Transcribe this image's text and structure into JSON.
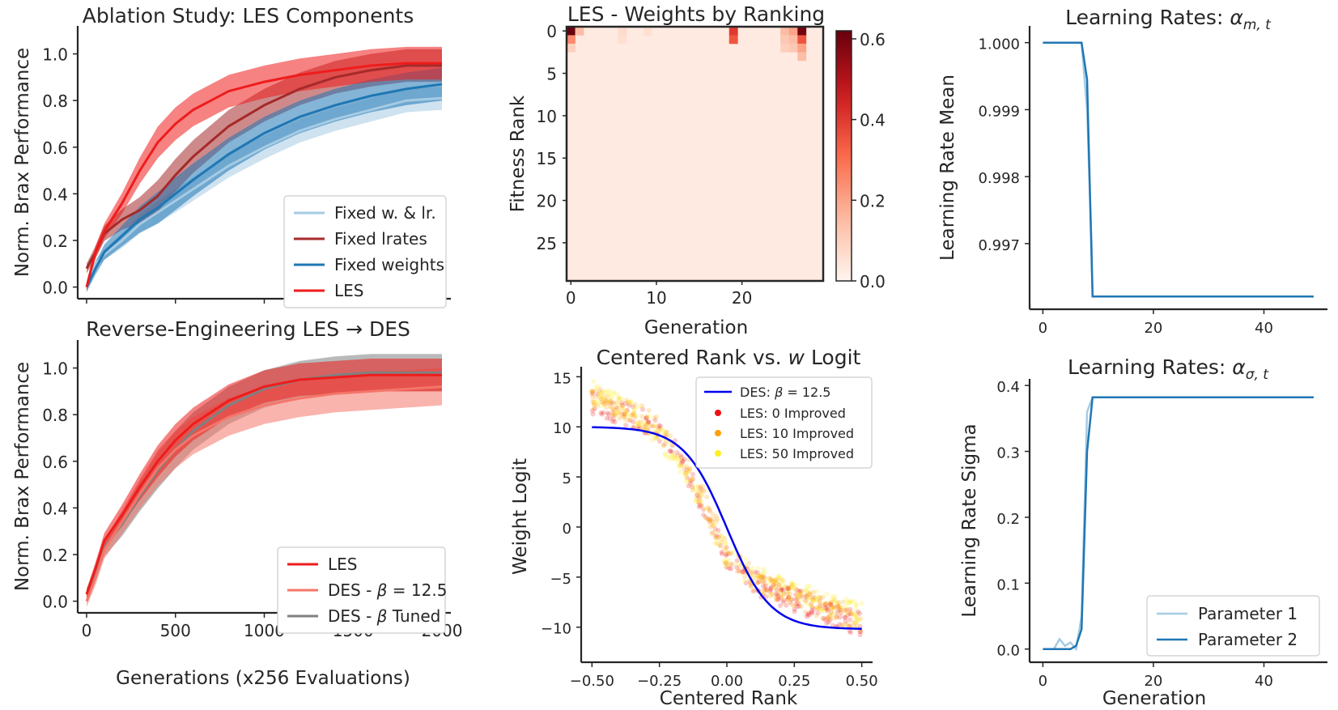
{
  "chart_data": [
    {
      "id": "ablation",
      "type": "line",
      "title": "Ablation Study: LES Components",
      "xlabel": "",
      "ylabel": "Norm. Brax Performance",
      "xlim": [
        -50,
        2050
      ],
      "ylim": [
        -0.05,
        1.12
      ],
      "xticks": [
        0,
        500,
        1000,
        1500,
        2000
      ],
      "yticks": [
        0.0,
        0.2,
        0.4,
        0.6,
        0.8,
        1.0
      ],
      "yticklabels": [
        "0.0",
        "0.2",
        "0.4",
        "0.6",
        "0.8",
        "1.0"
      ],
      "show_xticklabels": false,
      "legend_position": "bottom-right",
      "series": [
        {
          "name": "Fixed w. & lr.",
          "color": "#a6cbe3",
          "x": [
            0,
            50,
            100,
            200,
            300,
            400,
            500,
            600,
            800,
            1000,
            1200,
            1400,
            1600,
            1800,
            2000
          ],
          "values": [
            0.0,
            0.1,
            0.14,
            0.2,
            0.27,
            0.32,
            0.37,
            0.42,
            0.52,
            0.6,
            0.67,
            0.72,
            0.76,
            0.8,
            0.81
          ],
          "band": 0.05
        },
        {
          "name": "Fixed lrates",
          "color": "#a52a2a",
          "x": [
            0,
            50,
            100,
            200,
            300,
            400,
            500,
            600,
            800,
            1000,
            1200,
            1400,
            1600,
            1800,
            2000
          ],
          "values": [
            0.08,
            0.15,
            0.23,
            0.29,
            0.33,
            0.39,
            0.48,
            0.56,
            0.69,
            0.78,
            0.85,
            0.9,
            0.93,
            0.95,
            0.95
          ],
          "band": 0.07
        },
        {
          "name": "Fixed weights",
          "color": "#1f77b4",
          "x": [
            0,
            50,
            100,
            200,
            300,
            400,
            500,
            600,
            800,
            1000,
            1200,
            1400,
            1600,
            1800,
            2000
          ],
          "values": [
            0.0,
            0.08,
            0.15,
            0.22,
            0.29,
            0.34,
            0.4,
            0.46,
            0.57,
            0.66,
            0.73,
            0.78,
            0.82,
            0.85,
            0.87
          ],
          "band": 0.07
        },
        {
          "name": "LES",
          "color": "#ee1c1c",
          "x": [
            0,
            50,
            100,
            200,
            300,
            400,
            500,
            600,
            800,
            1000,
            1200,
            1400,
            1600,
            1800,
            2000
          ],
          "values": [
            0.0,
            0.15,
            0.24,
            0.36,
            0.5,
            0.62,
            0.7,
            0.76,
            0.84,
            0.88,
            0.91,
            0.93,
            0.95,
            0.96,
            0.96
          ],
          "band": 0.07
        }
      ]
    },
    {
      "id": "reverse",
      "type": "line",
      "title": "Reverse-Engineering LES → DES",
      "xlabel": "Generations (x256 Evaluations)",
      "ylabel": "Norm. Brax Performance",
      "xlim": [
        -50,
        2050
      ],
      "ylim": [
        -0.05,
        1.12
      ],
      "xticks": [
        0,
        500,
        1000,
        1500,
        2000
      ],
      "xticklabels": [
        "0",
        "500",
        "1000",
        "1500",
        "2000"
      ],
      "yticks": [
        0.0,
        0.2,
        0.4,
        0.6,
        0.8,
        1.0
      ],
      "yticklabels": [
        "0.0",
        "0.2",
        "0.4",
        "0.6",
        "0.8",
        "1.0"
      ],
      "legend_position": "bottom-right",
      "series": [
        {
          "name": "DES - β Tuned",
          "label_parts": [
            "DES - ",
            "β",
            " Tuned"
          ],
          "color": "#808080",
          "x": [
            0,
            50,
            100,
            200,
            300,
            400,
            500,
            600,
            800,
            1000,
            1200,
            1400,
            1600,
            1800,
            2000
          ],
          "values": [
            0.03,
            0.12,
            0.23,
            0.33,
            0.45,
            0.56,
            0.65,
            0.73,
            0.84,
            0.91,
            0.95,
            0.97,
            0.98,
            0.98,
            0.98
          ],
          "band": 0.08
        },
        {
          "name": "DES - β = 12.5",
          "label_parts": [
            "DES - ",
            "β",
            " = 12.5"
          ],
          "color": "#f4766a",
          "x": [
            0,
            50,
            100,
            200,
            300,
            400,
            500,
            600,
            800,
            1000,
            1200,
            1400,
            1600,
            1800,
            2000
          ],
          "values": [
            0.0,
            0.1,
            0.22,
            0.34,
            0.46,
            0.57,
            0.65,
            0.71,
            0.79,
            0.84,
            0.87,
            0.89,
            0.9,
            0.91,
            0.92
          ],
          "band": 0.08
        },
        {
          "name": "LES",
          "label_parts": [
            "LES"
          ],
          "color": "#ee1c1c",
          "x": [
            0,
            50,
            100,
            200,
            300,
            400,
            500,
            600,
            800,
            1000,
            1200,
            1400,
            1600,
            1800,
            2000
          ],
          "values": [
            0.03,
            0.14,
            0.26,
            0.37,
            0.49,
            0.6,
            0.69,
            0.76,
            0.86,
            0.92,
            0.95,
            0.96,
            0.97,
            0.97,
            0.97
          ],
          "band": 0.07
        }
      ],
      "legend_order": [
        "LES",
        "DES - β = 12.5",
        "DES - β Tuned"
      ]
    },
    {
      "id": "heatmap",
      "type": "heatmap",
      "title": "LES - Weights by Ranking",
      "xlabel": "Generation",
      "ylabel": "Fitness Rank",
      "n_cols": 30,
      "n_rows": 30,
      "xticks": [
        0,
        10,
        20
      ],
      "yticks": [
        0,
        5,
        10,
        15,
        20,
        25
      ],
      "colorbar": {
        "min": 0.0,
        "max": 0.62,
        "ticks": [
          0.0,
          0.2,
          0.4,
          0.6
        ],
        "ticklabels": [
          "0.0",
          "0.2",
          "0.4",
          "0.6"
        ],
        "colormap": "Reds"
      },
      "background_value": 0.03,
      "cells": [
        {
          "gen": 0,
          "rank": 0,
          "value": 0.62
        },
        {
          "gen": 0,
          "rank": 1,
          "value": 0.25
        },
        {
          "gen": 1,
          "rank": 0,
          "value": 0.15
        },
        {
          "gen": 0,
          "rank": 2,
          "value": 0.1
        },
        {
          "gen": 6,
          "rank": 0,
          "value": 0.07
        },
        {
          "gen": 6,
          "rank": 1,
          "value": 0.06
        },
        {
          "gen": 9,
          "rank": 0,
          "value": 0.06
        },
        {
          "gen": 19,
          "rank": 0,
          "value": 0.4
        },
        {
          "gen": 19,
          "rank": 1,
          "value": 0.35
        },
        {
          "gen": 25,
          "rank": 0,
          "value": 0.15
        },
        {
          "gen": 25,
          "rank": 1,
          "value": 0.12
        },
        {
          "gen": 25,
          "rank": 2,
          "value": 0.1
        },
        {
          "gen": 26,
          "rank": 0,
          "value": 0.2
        },
        {
          "gen": 26,
          "rank": 1,
          "value": 0.15
        },
        {
          "gen": 26,
          "rank": 2,
          "value": 0.12
        },
        {
          "gen": 27,
          "rank": 0,
          "value": 0.6
        },
        {
          "gen": 27,
          "rank": 1,
          "value": 0.35
        },
        {
          "gen": 27,
          "rank": 2,
          "value": 0.2
        },
        {
          "gen": 27,
          "rank": 3,
          "value": 0.15
        }
      ]
    },
    {
      "id": "logit",
      "type": "scatter",
      "title_parts": [
        "Centered Rank vs. ",
        "w",
        " Logit"
      ],
      "title": "Centered Rank vs. w Logit",
      "xlabel": "Centered Rank",
      "ylabel": "Weight Logit",
      "xlim": [
        -0.54,
        0.54
      ],
      "ylim": [
        -13.5,
        16
      ],
      "xticks": [
        -0.5,
        -0.25,
        0.0,
        0.25,
        0.5
      ],
      "xticklabels": [
        "−0.50",
        "−0.25",
        "0.00",
        "0.25",
        "0.50"
      ],
      "yticks": [
        -10,
        -5,
        0,
        5,
        10,
        15
      ],
      "yticklabels": [
        "−10",
        "−5",
        "0",
        "5",
        "10",
        "15"
      ],
      "legend_position": "top-right",
      "des_curve": {
        "label_parts": [
          "DES: ",
          "β",
          " = 12.5"
        ],
        "color": "#0000ee",
        "top": 10.0,
        "bottom": -10.2,
        "steepness": 12.5,
        "center": 0.0
      },
      "scatter_series": [
        {
          "name": "LES: 0 Improved",
          "color": "#ee1111",
          "x": [
            -0.5,
            -0.4,
            -0.3,
            -0.2,
            -0.1,
            0.0,
            0.1,
            0.2,
            0.3,
            0.4,
            0.5
          ],
          "values": [
            12.5,
            11.5,
            10.5,
            8.0,
            3.0,
            -3.0,
            -5.5,
            -6.8,
            -7.8,
            -8.8,
            -9.8
          ]
        },
        {
          "name": "LES: 10 Improved",
          "color": "#ffa000",
          "x": [
            -0.5,
            -0.4,
            -0.3,
            -0.2,
            -0.1,
            0.0,
            0.1,
            0.2,
            0.3,
            0.4,
            0.5
          ],
          "values": [
            13.0,
            12.0,
            10.8,
            8.5,
            3.5,
            -2.5,
            -5.2,
            -6.4,
            -7.4,
            -8.4,
            -9.3
          ]
        },
        {
          "name": "LES: 50 Improved",
          "color": "#ffee22",
          "x": [
            -0.5,
            -0.4,
            -0.3,
            -0.2,
            -0.1,
            0.0,
            0.1,
            0.2,
            0.3,
            0.4,
            0.5
          ],
          "values": [
            13.5,
            12.2,
            10.5,
            7.5,
            2.5,
            -2.8,
            -5.0,
            -6.0,
            -7.0,
            -8.0,
            -8.8
          ]
        }
      ]
    },
    {
      "id": "lr_mean",
      "type": "line",
      "title_parts": [
        "Learning Rates: ",
        "α",
        "m, t"
      ],
      "title": "Learning Rates: α_{m,t}",
      "xlabel": "",
      "ylabel": "Learning Rate Mean",
      "xlim": [
        -2.4,
        51.5
      ],
      "ylim": [
        0.99602,
        1.00025
      ],
      "xticks": [
        0,
        20,
        40
      ],
      "xticklabels": [
        "0",
        "20",
        "40"
      ],
      "yticks": [
        0.997,
        0.998,
        0.999,
        1.0
      ],
      "yticklabels": [
        "0.997",
        "0.998",
        "0.999",
        "1.000"
      ],
      "series": [
        {
          "name": "Parameter 1",
          "color": "#a6cbe3",
          "x": [
            0,
            7,
            8,
            8.8,
            9,
            49
          ],
          "values": [
            1.0,
            1.0,
            0.999,
            0.997,
            0.99621,
            0.99621
          ]
        },
        {
          "name": "Parameter 2",
          "color": "#1f77b4",
          "x": [
            0,
            7,
            8,
            9,
            49
          ],
          "values": [
            1.0,
            1.0,
            0.99945,
            0.99621,
            0.99621
          ]
        }
      ]
    },
    {
      "id": "lr_sigma",
      "type": "line",
      "title_parts": [
        "Learning Rates: ",
        "α",
        "σ, t"
      ],
      "title": "Learning Rates: α_{σ,t}",
      "xlabel": "Generation",
      "ylabel": "Learning Rate Sigma",
      "xlim": [
        -2.4,
        51.5
      ],
      "ylim": [
        -0.02,
        0.41
      ],
      "xticks": [
        0,
        20,
        40
      ],
      "xticklabels": [
        "0",
        "20",
        "40"
      ],
      "yticks": [
        0.0,
        0.1,
        0.2,
        0.3,
        0.4
      ],
      "yticklabels": [
        "0.0",
        "0.1",
        "0.2",
        "0.3",
        "0.4"
      ],
      "legend_position": "bottom-right",
      "series": [
        {
          "name": "Parameter 1",
          "color": "#a6cbe3",
          "x": [
            0,
            2,
            3,
            4,
            5,
            6,
            7,
            8,
            9,
            49
          ],
          "values": [
            0.0,
            0.0,
            0.015,
            0.005,
            0.01,
            0.0,
            0.05,
            0.36,
            0.382,
            0.382
          ]
        },
        {
          "name": "Parameter 2",
          "color": "#1f77b4",
          "x": [
            0,
            5,
            6,
            7,
            8,
            9,
            49
          ],
          "values": [
            0.0,
            0.0,
            0.005,
            0.03,
            0.3,
            0.382,
            0.382
          ]
        }
      ]
    }
  ]
}
